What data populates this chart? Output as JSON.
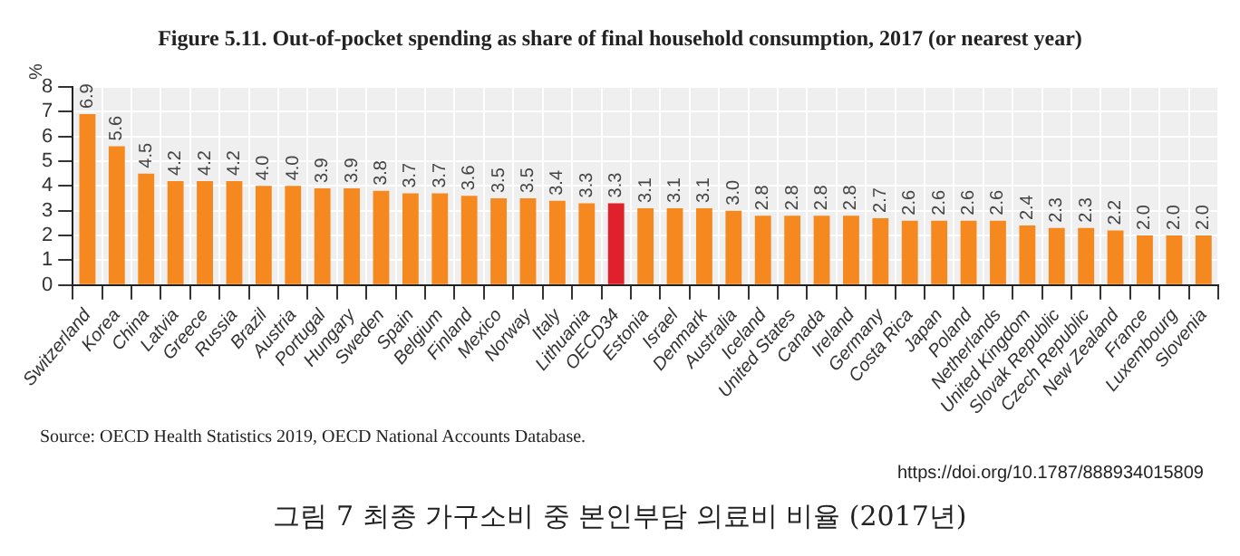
{
  "chart_data": {
    "type": "bar",
    "title": "Figure 5.11. Out-of-pocket spending as share of final household consumption, 2017 (or nearest year)",
    "ylabel": "%",
    "categories": [
      "Switzerland",
      "Korea",
      "China",
      "Latvia",
      "Greece",
      "Russia",
      "Brazil",
      "Austria",
      "Portugal",
      "Hungary",
      "Sweden",
      "Spain",
      "Belgium",
      "Finland",
      "Mexico",
      "Norway",
      "Italy",
      "Lithuania",
      "OECD34",
      "Estonia",
      "Israel",
      "Denmark",
      "Australia",
      "Iceland",
      "United States",
      "Canada",
      "Ireland",
      "Germany",
      "Costa Rica",
      "Japan",
      "Poland",
      "Netherlands",
      "United Kingdom",
      "Slovak Republic",
      "Czech Republic",
      "New Zealand",
      "France",
      "Luxembourg",
      "Slovenia"
    ],
    "values": [
      6.9,
      5.6,
      4.5,
      4.2,
      4.2,
      4.2,
      4.0,
      4.0,
      3.9,
      3.9,
      3.8,
      3.7,
      3.7,
      3.6,
      3.5,
      3.5,
      3.4,
      3.3,
      3.3,
      3.1,
      3.1,
      3.1,
      3.0,
      2.8,
      2.8,
      2.8,
      2.8,
      2.7,
      2.6,
      2.6,
      2.6,
      2.6,
      2.4,
      2.3,
      2.3,
      2.2,
      2.0,
      2.0,
      2.0
    ],
    "colors": [
      "#f5891f",
      "#f5891f",
      "#f5891f",
      "#f5891f",
      "#f5891f",
      "#f5891f",
      "#f5891f",
      "#f5891f",
      "#f5891f",
      "#f5891f",
      "#f5891f",
      "#f5891f",
      "#f5891f",
      "#f5891f",
      "#f5891f",
      "#f5891f",
      "#f5891f",
      "#f5891f",
      "#e0202a",
      "#f5891f",
      "#f5891f",
      "#f5891f",
      "#f5891f",
      "#f5891f",
      "#f5891f",
      "#f5891f",
      "#f5891f",
      "#f5891f",
      "#f5891f",
      "#f5891f",
      "#f5891f",
      "#f5891f",
      "#f5891f",
      "#f5891f",
      "#f5891f",
      "#f5891f",
      "#f5891f",
      "#f5891f",
      "#f5891f"
    ],
    "value_labels": [
      "6.9",
      "5.6",
      "4.5",
      "4.2",
      "4.2",
      "4.2",
      "4.0",
      "4.0",
      "3.9",
      "3.9",
      "3.8",
      "3.7",
      "3.7",
      "3.6",
      "3.5",
      "3.5",
      "3.4",
      "3.3",
      "3.3",
      "3.1",
      "3.1",
      "3.1",
      "3.0",
      "2.8",
      "2.8",
      "2.8",
      "2.8",
      "2.7",
      "2.6",
      "2.6",
      "2.6",
      "2.6",
      "2.4",
      "2.3",
      "2.3",
      "2.2",
      "2.0",
      "2.0",
      "2.0"
    ],
    "ylim": [
      0,
      8
    ],
    "yticks": [
      0,
      1,
      2,
      3,
      4,
      5,
      6,
      7,
      8
    ],
    "grid": true,
    "legend": false,
    "annotations": [
      "Source: OECD Health Statistics 2019, OECD National Accounts Database.",
      "https://doi.org/10.1787/888934015809",
      "그림 7 최종 가구소비 중 본인부담 의료비 비율 (2017년)"
    ]
  }
}
